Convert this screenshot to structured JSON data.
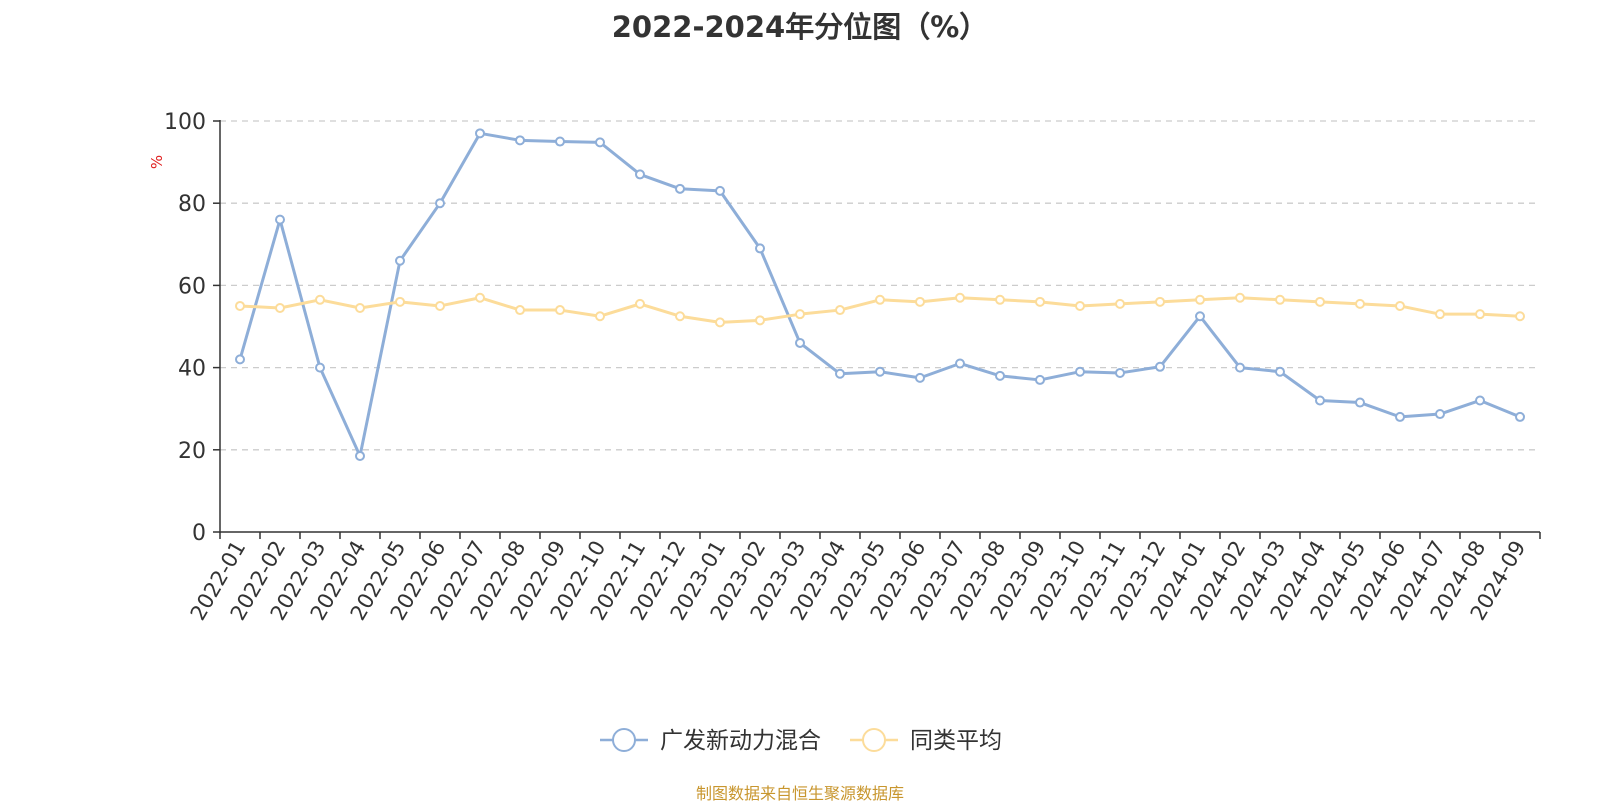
{
  "chart_data": {
    "type": "line",
    "title": "2022-2024年分位图（%）",
    "ylabel": "%",
    "ylim": [
      0,
      100
    ],
    "yticks": [
      0,
      20,
      40,
      60,
      80,
      100
    ],
    "grid": true,
    "legend_position": "bottom-center",
    "categories": [
      "2022-01",
      "2022-02",
      "2022-03",
      "2022-04",
      "2022-05",
      "2022-06",
      "2022-07",
      "2022-08",
      "2022-09",
      "2022-10",
      "2022-11",
      "2022-12",
      "2023-01",
      "2023-02",
      "2023-03",
      "2023-04",
      "2023-05",
      "2023-06",
      "2023-07",
      "2023-08",
      "2023-09",
      "2023-10",
      "2023-11",
      "2023-12",
      "2024-01",
      "2024-02",
      "2024-03",
      "2024-04",
      "2024-05",
      "2024-06",
      "2024-07",
      "2024-08",
      "2024-09"
    ],
    "series": [
      {
        "name": "广发新动力混合",
        "color": "#8eaed8",
        "values": [
          42,
          76,
          40,
          18.5,
          66,
          80,
          97,
          95.3,
          95,
          94.8,
          87,
          83.5,
          83,
          69,
          46,
          38.5,
          39,
          37.5,
          41,
          38,
          37,
          39,
          38.7,
          40.2,
          52.5,
          40,
          39,
          32,
          31.5,
          28,
          28.7,
          32,
          28
        ]
      },
      {
        "name": "同类平均",
        "color": "#fcdc9a",
        "values": [
          55,
          54.5,
          56.5,
          54.5,
          56,
          55,
          57,
          54,
          54,
          52.5,
          55.5,
          52.5,
          51,
          51.5,
          53,
          54,
          56.5,
          56,
          57,
          56.5,
          56,
          55,
          55.5,
          56,
          56.5,
          57,
          56.5,
          56,
          55.5,
          55,
          53,
          53,
          52.5
        ]
      }
    ]
  },
  "source_note": "制图数据来自恒生聚源数据库"
}
